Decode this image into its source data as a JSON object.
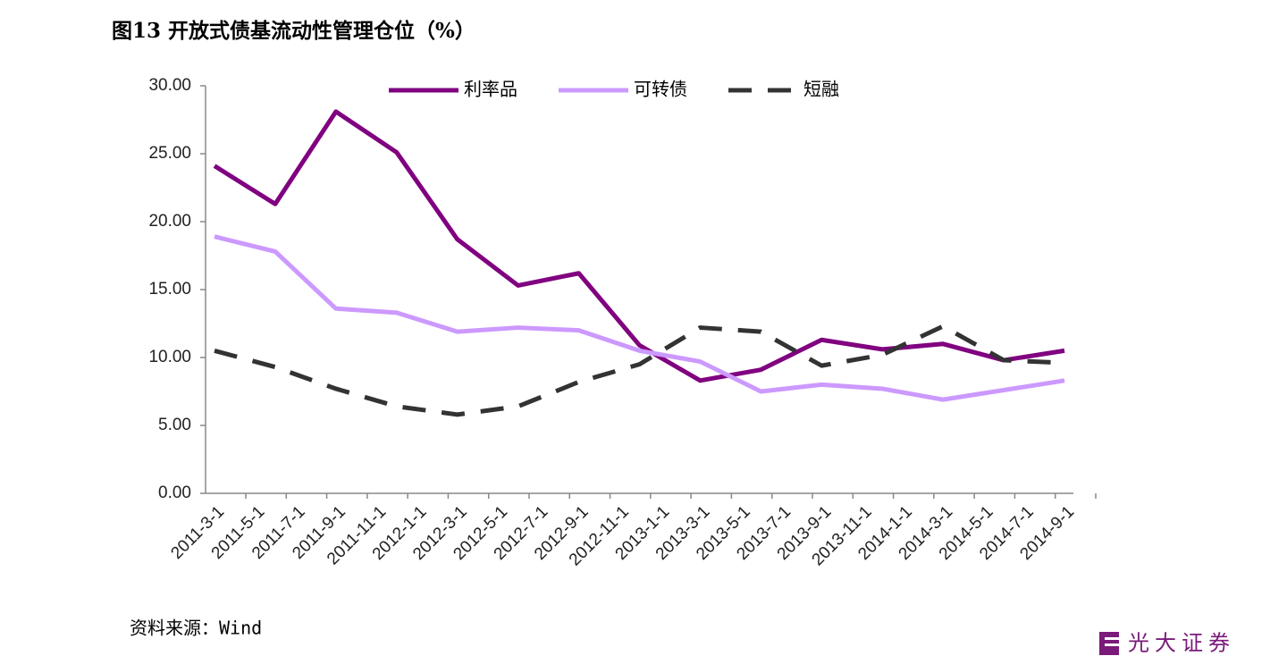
{
  "chart_data": {
    "type": "line",
    "title": "图13 开放式债基流动性管理仓位（%）",
    "x": [
      "2011-3-1",
      "2011-6-1",
      "2011-9-1",
      "2011-12-1",
      "2012-3-1",
      "2012-6-1",
      "2012-9-1",
      "2012-12-1",
      "2013-3-1",
      "2013-6-1",
      "2013-9-1",
      "2013-12-1",
      "2014-3-1",
      "2014-6-1",
      "2014-9-1"
    ],
    "series": [
      {
        "name": "利率品",
        "color": "#800080",
        "style": "solid",
        "values": [
          24.1,
          21.3,
          28.1,
          25.1,
          18.7,
          15.3,
          16.2,
          10.9,
          8.3,
          9.1,
          11.3,
          10.6,
          11.0,
          9.8,
          10.5
        ]
      },
      {
        "name": "可转债",
        "color": "#cc99ff",
        "style": "solid",
        "values": [
          18.9,
          17.8,
          13.6,
          13.3,
          11.9,
          12.2,
          12.0,
          10.5,
          9.7,
          7.5,
          8.0,
          7.7,
          6.9,
          7.6,
          8.3
        ]
      },
      {
        "name": "短融",
        "color": "#333333",
        "style": "dashed",
        "values": [
          10.5,
          9.3,
          7.7,
          6.4,
          5.8,
          6.4,
          8.2,
          9.5,
          12.2,
          11.9,
          9.4,
          10.2,
          12.3,
          9.8,
          9.6
        ]
      }
    ],
    "xticks": [
      "2011-3-1",
      "2011-5-1",
      "2011-7-1",
      "2011-9-1",
      "2011-11-1",
      "2012-1-1",
      "2012-3-1",
      "2012-5-1",
      "2012-7-1",
      "2012-9-1",
      "2012-11-1",
      "2013-1-1",
      "2013-3-1",
      "2013-5-1",
      "2013-7-1",
      "2013-9-1",
      "2013-11-1",
      "2014-1-1",
      "2014-3-1",
      "2014-5-1",
      "2014-7-1",
      "2014-9-1"
    ],
    "ylim": [
      0,
      30
    ],
    "yticks": [
      {
        "value": 0,
        "label": "0.00"
      },
      {
        "value": 5,
        "label": "5.00"
      },
      {
        "value": 10,
        "label": "10.00"
      },
      {
        "value": 15,
        "label": "15.00"
      },
      {
        "value": 20,
        "label": "20.00"
      },
      {
        "value": 25,
        "label": "25.00"
      },
      {
        "value": 30,
        "label": "30.00"
      }
    ],
    "grid": false,
    "legend": "top"
  },
  "source": "资料来源：Wind",
  "logo": "光大证券"
}
